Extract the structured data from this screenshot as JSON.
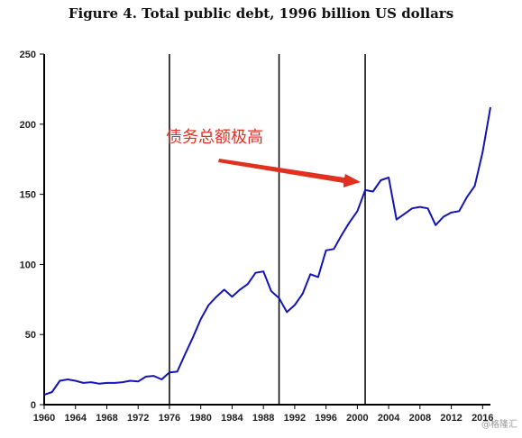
{
  "chart_data": {
    "type": "line",
    "title": "Figure 4. Total public debt, 1996 billion US dollars",
    "xlabel": "",
    "ylabel": "",
    "xlim": [
      1960,
      2017
    ],
    "ylim": [
      0,
      250
    ],
    "y_ticks": [
      0,
      50,
      100,
      150,
      200,
      250
    ],
    "x_ticks": [
      1960,
      1964,
      1968,
      1972,
      1976,
      1980,
      1984,
      1988,
      1992,
      1996,
      2000,
      2004,
      2008,
      2012,
      2016
    ],
    "grid": false,
    "legend": "none",
    "line_color": "#1414b4",
    "vertical_lines": [
      1976,
      1990,
      2001
    ],
    "series": [
      {
        "x": [
          1960,
          1961,
          1962,
          1963,
          1964,
          1965,
          1966,
          1967,
          1968,
          1969,
          1970,
          1971,
          1972,
          1973,
          1974,
          1975,
          1976,
          1977,
          1978,
          1979,
          1980,
          1981,
          1982,
          1983,
          1984,
          1985,
          1986,
          1987,
          1988,
          1989,
          1990,
          1991,
          1992,
          1993,
          1994,
          1995,
          1996,
          1997,
          1998,
          1999,
          2000,
          2001,
          2002,
          2003,
          2004,
          2005,
          2006,
          2007,
          2008,
          2009,
          2010,
          2011,
          2012,
          2013,
          2014,
          2015,
          2016,
          2017
        ],
        "values": [
          7,
          9,
          17,
          18,
          17,
          15.5,
          16,
          15,
          15.5,
          15.5,
          16,
          17,
          16.5,
          20,
          20.5,
          18,
          23,
          23.5,
          36,
          48,
          61,
          71,
          77,
          82,
          77,
          82,
          86,
          94,
          95,
          81,
          76,
          66,
          71,
          79,
          93,
          91,
          110,
          111,
          121,
          130,
          138,
          153,
          152,
          160,
          162,
          132,
          136,
          140,
          141,
          140,
          128,
          134,
          137,
          138,
          148,
          156,
          180,
          212
        ]
      }
    ],
    "annotations": [
      {
        "text": "债务总额极高",
        "color": "#e03020"
      }
    ]
  },
  "watermark": "@格隆汇"
}
